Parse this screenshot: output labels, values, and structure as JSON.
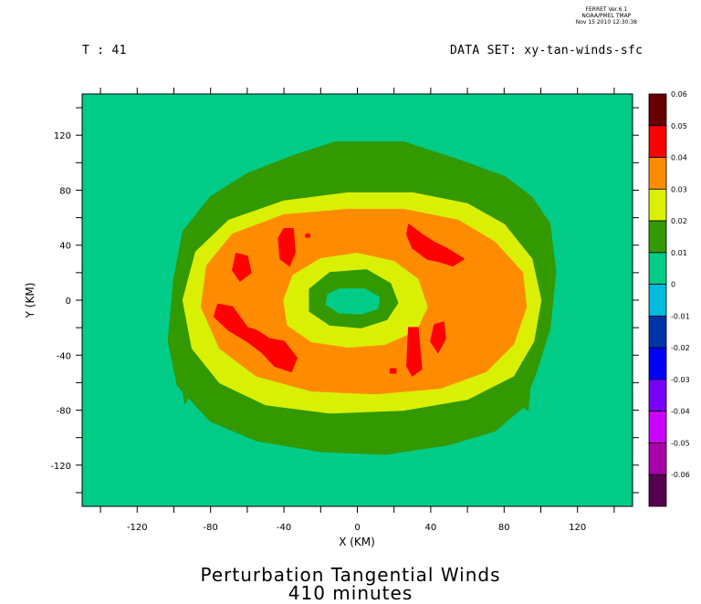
{
  "header": {
    "ferret_lines": [
      "FERRET  Ver.6.1",
      "NOAA/PMEL TMAP",
      "Nov 15 2010 12:30:38"
    ],
    "time_label": "T : 41",
    "dataset_label": "DATA SET: xy-tan-winds-sfc"
  },
  "chart_data": {
    "type": "heatmap",
    "title": "Perturbation Tangential Winds",
    "subtitle": "410 minutes",
    "xlabel": "X (KM)",
    "ylabel": "Y (KM)",
    "xlim": [
      -150,
      150
    ],
    "ylim": [
      -150,
      150
    ],
    "x_ticks": [
      -120,
      -80,
      -40,
      0,
      40,
      80,
      120
    ],
    "y_ticks": [
      120,
      80,
      40,
      0,
      -40,
      -80,
      -120
    ],
    "x_tick_labels": [
      "-120",
      "-80",
      "-40",
      "0",
      "40",
      "80",
      "120"
    ],
    "y_tick_labels": [
      "120",
      "80",
      "40",
      "0",
      "-40",
      "-80",
      "-120"
    ],
    "background_level": "0 to 0.01",
    "regions": [
      {
        "level": "0.01 to 0.02",
        "color": "#339900",
        "shape": "outer ring",
        "points": [
          [
            -12,
            115
          ],
          [
            25,
            115
          ],
          [
            55,
            102
          ],
          [
            80,
            90
          ],
          [
            95,
            75
          ],
          [
            105,
            55
          ],
          [
            108,
            20
          ],
          [
            105,
            -20
          ],
          [
            98,
            -50
          ],
          [
            90,
            -78
          ],
          [
            75,
            -95
          ],
          [
            50,
            -105
          ],
          [
            15,
            -112
          ],
          [
            -20,
            -110
          ],
          [
            -55,
            -102
          ],
          [
            -80,
            -88
          ],
          [
            -98,
            -62
          ],
          [
            -103,
            -30
          ],
          [
            -100,
            15
          ],
          [
            -95,
            50
          ],
          [
            -80,
            75
          ],
          [
            -60,
            92
          ],
          [
            -35,
            105
          ]
        ]
      },
      {
        "level": "0.02 to 0.03",
        "color": "#d9f005",
        "shape": "ring",
        "points": [
          [
            -5,
            78
          ],
          [
            30,
            78
          ],
          [
            60,
            70
          ],
          [
            80,
            55
          ],
          [
            95,
            30
          ],
          [
            100,
            0
          ],
          [
            96,
            -30
          ],
          [
            85,
            -55
          ],
          [
            60,
            -72
          ],
          [
            25,
            -80
          ],
          [
            -15,
            -82
          ],
          [
            -50,
            -76
          ],
          [
            -75,
            -60
          ],
          [
            -90,
            -35
          ],
          [
            -95,
            0
          ],
          [
            -88,
            35
          ],
          [
            -70,
            58
          ],
          [
            -40,
            72
          ]
        ]
      },
      {
        "level": "0.03 to 0.04",
        "color": "#ff8c00",
        "shape": "ring",
        "points": [
          [
            -5,
            66
          ],
          [
            25,
            66
          ],
          [
            55,
            58
          ],
          [
            75,
            42
          ],
          [
            90,
            20
          ],
          [
            92,
            -5
          ],
          [
            85,
            -32
          ],
          [
            70,
            -52
          ],
          [
            45,
            -64
          ],
          [
            10,
            -68
          ],
          [
            -25,
            -66
          ],
          [
            -55,
            -55
          ],
          [
            -75,
            -35
          ],
          [
            -85,
            -5
          ],
          [
            -82,
            25
          ],
          [
            -68,
            48
          ],
          [
            -40,
            62
          ]
        ]
      },
      {
        "level": "0.02 to 0.03",
        "color": "#d9f005",
        "shape": "inner ring",
        "points": [
          [
            -20,
            30
          ],
          [
            0,
            34
          ],
          [
            20,
            28
          ],
          [
            33,
            15
          ],
          [
            38,
            -5
          ],
          [
            32,
            -22
          ],
          [
            15,
            -32
          ],
          [
            -5,
            -34
          ],
          [
            -25,
            -30
          ],
          [
            -38,
            -18
          ],
          [
            -40,
            0
          ],
          [
            -35,
            18
          ]
        ]
      },
      {
        "level": "0.01 to 0.02",
        "color": "#339900",
        "shape": "eye ring",
        "points": [
          [
            -15,
            20
          ],
          [
            5,
            22
          ],
          [
            18,
            12
          ],
          [
            22,
            -2
          ],
          [
            16,
            -14
          ],
          [
            2,
            -20
          ],
          [
            -15,
            -18
          ],
          [
            -26,
            -8
          ],
          [
            -26,
            8
          ]
        ]
      },
      {
        "level": "0 to 0.01",
        "color": "#00cc88",
        "shape": "eye center",
        "points": [
          [
            -10,
            8
          ],
          [
            4,
            8
          ],
          [
            12,
            2
          ],
          [
            11,
            -6
          ],
          [
            2,
            -10
          ],
          [
            -10,
            -9
          ],
          [
            -17,
            -3
          ],
          [
            -16,
            4
          ]
        ]
      },
      {
        "level": "0.04 to 0.05",
        "color": "#ff0000",
        "shape": "patch",
        "points": [
          [
            -40,
            52
          ],
          [
            -35,
            52
          ],
          [
            -34,
            35
          ],
          [
            -37,
            25
          ],
          [
            -42,
            30
          ],
          [
            -43,
            45
          ]
        ]
      },
      {
        "level": "0.04 to 0.05",
        "color": "#ff0000",
        "shape": "patch",
        "points": [
          [
            -66,
            34
          ],
          [
            -60,
            32
          ],
          [
            -58,
            20
          ],
          [
            -64,
            14
          ],
          [
            -68,
            22
          ]
        ]
      },
      {
        "level": "0.04 to 0.05",
        "color": "#ff0000",
        "shape": "patch",
        "points": [
          [
            -76,
            -3
          ],
          [
            -68,
            -5
          ],
          [
            -60,
            -20
          ],
          [
            -55,
            -22
          ],
          [
            -48,
            -28
          ],
          [
            -40,
            -30
          ],
          [
            -33,
            -42
          ],
          [
            -36,
            -52
          ],
          [
            -45,
            -48
          ],
          [
            -52,
            -38
          ],
          [
            -60,
            -30
          ],
          [
            -70,
            -22
          ],
          [
            -78,
            -12
          ]
        ]
      },
      {
        "level": "0.04 to 0.05",
        "color": "#ff0000",
        "shape": "patch",
        "points": [
          [
            28,
            55
          ],
          [
            35,
            48
          ],
          [
            42,
            42
          ],
          [
            48,
            38
          ],
          [
            52,
            35
          ],
          [
            58,
            30
          ],
          [
            52,
            25
          ],
          [
            45,
            28
          ],
          [
            38,
            30
          ],
          [
            30,
            38
          ],
          [
            27,
            48
          ]
        ]
      },
      {
        "level": "0.04 to 0.05",
        "color": "#ff0000",
        "shape": "patch",
        "points": [
          [
            42,
            -18
          ],
          [
            47,
            -16
          ],
          [
            48,
            -28
          ],
          [
            44,
            -38
          ],
          [
            40,
            -30
          ]
        ]
      },
      {
        "level": "0.04 to 0.05",
        "color": "#ff0000",
        "shape": "patch",
        "points": [
          [
            28,
            -20
          ],
          [
            33,
            -20
          ],
          [
            35,
            -50
          ],
          [
            30,
            -55
          ],
          [
            27,
            -48
          ]
        ]
      },
      {
        "level": "0.04 to 0.05",
        "color": "#ff0000",
        "shape": "patch",
        "points": [
          [
            -28,
            48
          ],
          [
            -26,
            48
          ],
          [
            -26,
            46
          ],
          [
            -28,
            46
          ]
        ]
      },
      {
        "level": "0.04 to 0.05",
        "color": "#ff0000",
        "shape": "patch",
        "points": [
          [
            18,
            -50
          ],
          [
            21,
            -50
          ],
          [
            21,
            -53
          ],
          [
            18,
            -53
          ]
        ]
      },
      {
        "level": "0.01 to 0.02",
        "color": "#339900",
        "shape": "spike",
        "points": [
          [
            -93,
            -40
          ],
          [
            -88,
            -45
          ],
          [
            -92,
            -70
          ],
          [
            -94,
            -75
          ],
          [
            -96,
            -55
          ]
        ]
      },
      {
        "level": "0.01 to 0.02",
        "color": "#339900",
        "shape": "spike",
        "points": [
          [
            90,
            -45
          ],
          [
            95,
            -45
          ],
          [
            93,
            -80
          ],
          [
            91,
            -78
          ],
          [
            89,
            -55
          ]
        ]
      }
    ],
    "colorbar": {
      "levels": [
        "0.06",
        "0.05",
        "0.04",
        "0.03",
        "0.02",
        "0.01",
        "0",
        "-0.01",
        "-0.02",
        "-0.03",
        "-0.04",
        "-0.05",
        "-0.06"
      ],
      "colors": [
        "#660000",
        "#ff0000",
        "#ff8c00",
        "#d9f005",
        "#339900",
        "#00cc88",
        "#00bbdd",
        "#0033aa",
        "#0000ff",
        "#7700ff",
        "#cc00ff",
        "#aa00aa",
        "#55004d"
      ]
    }
  }
}
